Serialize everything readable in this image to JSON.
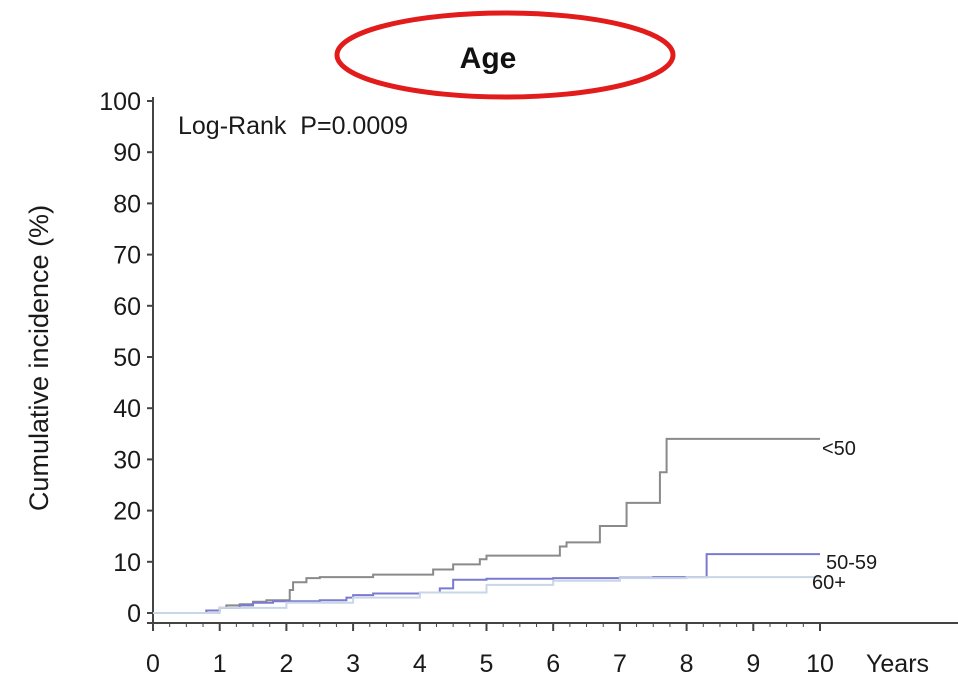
{
  "colors": {
    "axis": "#444444",
    "title_ellipse": "#e21b1b",
    "series_lt50": "#8a8a8a",
    "series_50_59": "#7a7ad0",
    "series_60plus": "#c9d6e6"
  },
  "chart_data": {
    "type": "line",
    "step": true,
    "title": "Age",
    "title_highlight": "red-ellipse",
    "annotation": "Log-Rank  P=0.0009",
    "xlabel": "Years",
    "ylabel": "Cumulative incidence (%)",
    "xlim": [
      0,
      10
    ],
    "ylim": [
      0,
      100
    ],
    "grid": false,
    "x_ticks": [
      0,
      1,
      2,
      3,
      4,
      5,
      6,
      7,
      8,
      9,
      10
    ],
    "y_ticks": [
      0,
      10,
      20,
      30,
      40,
      50,
      60,
      70,
      80,
      90,
      100
    ],
    "series": [
      {
        "name": "<50",
        "color_key": "series_lt50",
        "x": [
          0,
          0.8,
          1.0,
          1.1,
          1.3,
          1.5,
          1.7,
          2.0,
          2.05,
          2.1,
          2.3,
          2.5,
          3.0,
          3.3,
          4.0,
          4.2,
          4.5,
          4.9,
          5.0,
          5.5,
          6.1,
          6.2,
          6.7,
          7.1,
          7.5,
          7.6,
          7.7,
          10.0
        ],
        "y": [
          0,
          0.5,
          1.0,
          1.5,
          1.7,
          2.2,
          2.5,
          2.5,
          4.5,
          6.0,
          6.8,
          7.0,
          7.0,
          7.5,
          7.5,
          8.5,
          9.5,
          10.5,
          11.2,
          11.2,
          13.0,
          13.8,
          17.0,
          21.5,
          21.5,
          27.5,
          34.0,
          34.0
        ]
      },
      {
        "name": "50-59",
        "color_key": "series_50_59",
        "x": [
          0,
          0.8,
          1.0,
          1.3,
          1.5,
          1.8,
          2.0,
          2.5,
          2.9,
          3.0,
          3.3,
          4.0,
          4.3,
          4.5,
          5.0,
          6.0,
          7.0,
          7.5,
          8.2,
          8.3,
          10.0
        ],
        "y": [
          0,
          0.5,
          1.0,
          1.5,
          2.0,
          2.3,
          2.3,
          2.5,
          3.0,
          3.5,
          3.8,
          4.0,
          4.8,
          6.5,
          6.7,
          6.8,
          6.9,
          7.0,
          7.0,
          11.5,
          11.5
        ]
      },
      {
        "name": "60+",
        "color_key": "series_60plus",
        "x": [
          0,
          1.0,
          2.0,
          3.0,
          4.0,
          5.0,
          6.0,
          7.0,
          8.0,
          10.0
        ],
        "y": [
          0,
          1.0,
          2.0,
          3.0,
          4.0,
          5.5,
          6.3,
          6.8,
          7.0,
          7.0
        ]
      }
    ]
  }
}
